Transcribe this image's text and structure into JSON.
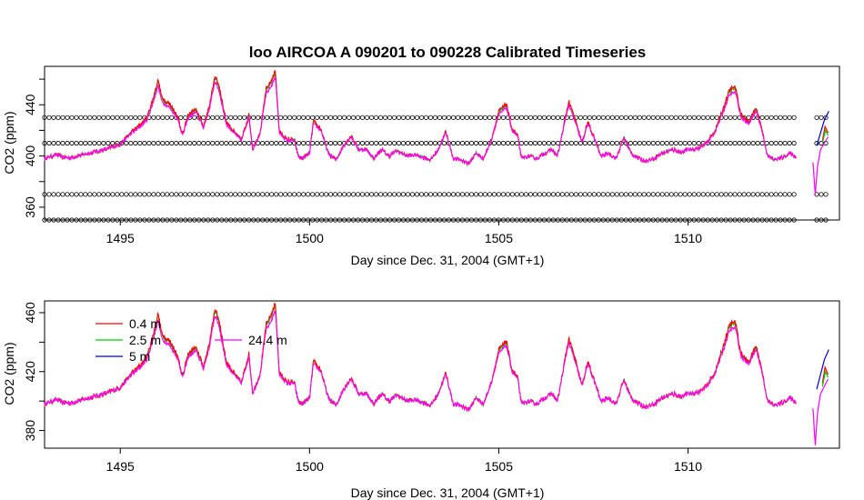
{
  "chart_data": [
    {
      "type": "line",
      "title": "loo   AIRCOA  A    090201  to  090228   Calibrated Timeseries",
      "xlabel": "Day since Dec. 31, 2004 (GMT+1)",
      "ylabel": "CO2 (ppm)",
      "xlim": [
        1493,
        1514
      ],
      "ylim": [
        350,
        470
      ],
      "x_ticks": [
        "1495",
        "1500",
        "1505",
        "1510"
      ],
      "y_ticks": [
        "360",
        "400",
        "440"
      ],
      "grid": false,
      "calibration_levels": [
        350,
        370,
        410,
        430
      ],
      "calibration_gaps": [
        [
          1512.8,
          1513.35
        ]
      ],
      "series": [
        {
          "name": "0.4 m",
          "color": "#ff0000"
        },
        {
          "name": "2.5 m",
          "color": "#00cc00"
        },
        {
          "name": "5 m",
          "color": "#0000cc"
        },
        {
          "name": "24.4 m",
          "color": "#ff00ff"
        }
      ]
    },
    {
      "type": "line",
      "title": "",
      "xlabel": "Day since Dec. 31, 2004 (GMT+1)",
      "ylabel": "CO2 (ppm)",
      "xlim": [
        1493,
        1514
      ],
      "ylim": [
        368,
        468
      ],
      "x_ticks": [
        "1495",
        "1500",
        "1505",
        "1510"
      ],
      "y_ticks": [
        "380",
        "420",
        "460"
      ],
      "grid": false,
      "legend": "top-left",
      "series": [
        {
          "name": "0.4 m",
          "color": "#ff0000"
        },
        {
          "name": "2.5 m",
          "color": "#00cc00"
        },
        {
          "name": "5 m",
          "color": "#0000cc"
        },
        {
          "name": "24.4 m",
          "color": "#ff00ff"
        }
      ]
    }
  ],
  "base_profile": [
    [
      1493.0,
      398
    ],
    [
      1493.3,
      401
    ],
    [
      1493.5,
      399
    ],
    [
      1493.7,
      398.5
    ],
    [
      1494.0,
      401
    ],
    [
      1494.3,
      403
    ],
    [
      1494.6,
      405
    ],
    [
      1495.0,
      409
    ],
    [
      1495.3,
      418
    ],
    [
      1495.5,
      422
    ],
    [
      1495.7,
      428
    ],
    [
      1495.85,
      440
    ],
    [
      1496.0,
      455
    ],
    [
      1496.1,
      442
    ],
    [
      1496.3,
      438
    ],
    [
      1496.5,
      430
    ],
    [
      1496.65,
      416
    ],
    [
      1496.8,
      430
    ],
    [
      1497.0,
      434
    ],
    [
      1497.2,
      422
    ],
    [
      1497.35,
      436
    ],
    [
      1497.5,
      458
    ],
    [
      1497.6,
      452
    ],
    [
      1497.8,
      425
    ],
    [
      1498.0,
      418
    ],
    [
      1498.2,
      412
    ],
    [
      1498.4,
      430
    ],
    [
      1498.5,
      405
    ],
    [
      1498.7,
      418
    ],
    [
      1498.85,
      448
    ],
    [
      1499.0,
      455
    ],
    [
      1499.1,
      462
    ],
    [
      1499.2,
      418
    ],
    [
      1499.4,
      412
    ],
    [
      1499.6,
      412
    ],
    [
      1499.7,
      400
    ],
    [
      1499.8,
      398
    ],
    [
      1500.0,
      402
    ],
    [
      1500.1,
      425
    ],
    [
      1500.3,
      420
    ],
    [
      1500.5,
      402
    ],
    [
      1500.7,
      397
    ],
    [
      1500.9,
      408
    ],
    [
      1501.1,
      415
    ],
    [
      1501.3,
      405
    ],
    [
      1501.5,
      405
    ],
    [
      1501.7,
      398
    ],
    [
      1501.9,
      405
    ],
    [
      1502.1,
      400
    ],
    [
      1502.3,
      404
    ],
    [
      1502.6,
      400
    ],
    [
      1502.8,
      401
    ],
    [
      1503.0,
      399
    ],
    [
      1503.2,
      397
    ],
    [
      1503.4,
      405
    ],
    [
      1503.6,
      418
    ],
    [
      1503.8,
      398
    ],
    [
      1504.0,
      397
    ],
    [
      1504.2,
      394
    ],
    [
      1504.4,
      402
    ],
    [
      1504.6,
      398
    ],
    [
      1504.8,
      412
    ],
    [
      1505.0,
      432
    ],
    [
      1505.2,
      438
    ],
    [
      1505.35,
      420
    ],
    [
      1505.5,
      415
    ],
    [
      1505.6,
      398
    ],
    [
      1505.8,
      400
    ],
    [
      1506.0,
      398
    ],
    [
      1506.2,
      402
    ],
    [
      1506.4,
      405
    ],
    [
      1506.55,
      400
    ],
    [
      1506.7,
      420
    ],
    [
      1506.85,
      440
    ],
    [
      1507.0,
      428
    ],
    [
      1507.2,
      410
    ],
    [
      1507.35,
      425
    ],
    [
      1507.5,
      415
    ],
    [
      1507.7,
      400
    ],
    [
      1507.9,
      402
    ],
    [
      1508.1,
      398
    ],
    [
      1508.3,
      414
    ],
    [
      1508.5,
      402
    ],
    [
      1508.7,
      398
    ],
    [
      1508.9,
      396
    ],
    [
      1509.1,
      398
    ],
    [
      1509.3,
      402
    ],
    [
      1509.6,
      405
    ],
    [
      1509.8,
      403
    ],
    [
      1510.0,
      405
    ],
    [
      1510.3,
      406
    ],
    [
      1510.5,
      410
    ],
    [
      1510.7,
      418
    ],
    [
      1510.9,
      432
    ],
    [
      1511.1,
      448
    ],
    [
      1511.25,
      450
    ],
    [
      1511.4,
      430
    ],
    [
      1511.6,
      425
    ],
    [
      1511.8,
      435
    ],
    [
      1511.95,
      420
    ],
    [
      1512.1,
      400
    ],
    [
      1512.3,
      397
    ],
    [
      1512.5,
      399
    ],
    [
      1512.7,
      402
    ],
    [
      1512.85,
      399
    ]
  ],
  "tail_segments": [
    {
      "series": 0,
      "points": [
        [
          1513.55,
          412
        ],
        [
          1513.62,
          423
        ],
        [
          1513.7,
          418
        ]
      ]
    },
    {
      "series": 1,
      "points": [
        [
          1513.55,
          410
        ],
        [
          1513.63,
          420
        ],
        [
          1513.7,
          416
        ]
      ]
    },
    {
      "series": 2,
      "points": [
        [
          1513.4,
          408
        ],
        [
          1513.5,
          418
        ],
        [
          1513.6,
          428
        ],
        [
          1513.72,
          435
        ]
      ]
    },
    {
      "series": 3,
      "points": [
        [
          1513.3,
          395
        ],
        [
          1513.36,
          370
        ],
        [
          1513.42,
          392
        ],
        [
          1513.5,
          405
        ],
        [
          1513.6,
          410
        ],
        [
          1513.7,
          415
        ]
      ]
    }
  ]
}
